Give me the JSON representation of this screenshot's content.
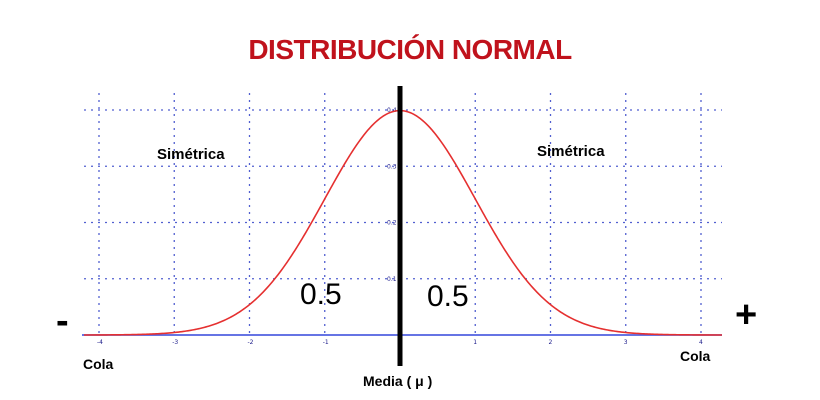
{
  "title": "DISTRIBUCIÓN NORMAL",
  "labels": {
    "symmetric_left": "Simétrica",
    "symmetric_right": "Simétrica",
    "area_left": "0.5",
    "area_right": "0.5",
    "minus_sign": "-",
    "plus_sign": "+",
    "tail_left": "Cola",
    "tail_right": "Cola",
    "mean": "Media ( μ )"
  },
  "colors": {
    "title": "#c0121c",
    "curve": "#e53030",
    "grid": "#3344c8",
    "axis": "#5060e0",
    "mean_line": "#000000"
  },
  "chart_data": {
    "type": "line",
    "curve": "standard-normal-density",
    "x_ticks": [
      "-4",
      "-3",
      "-2",
      "-1",
      "0",
      "1",
      "2",
      "3",
      "4"
    ],
    "y_ticks": [
      "0.1",
      "0.2",
      "0.3",
      "0.4"
    ],
    "xlim": [
      -4,
      4
    ],
    "ylim": [
      0,
      0.4
    ],
    "mean_line_x": 0,
    "grid": true
  }
}
